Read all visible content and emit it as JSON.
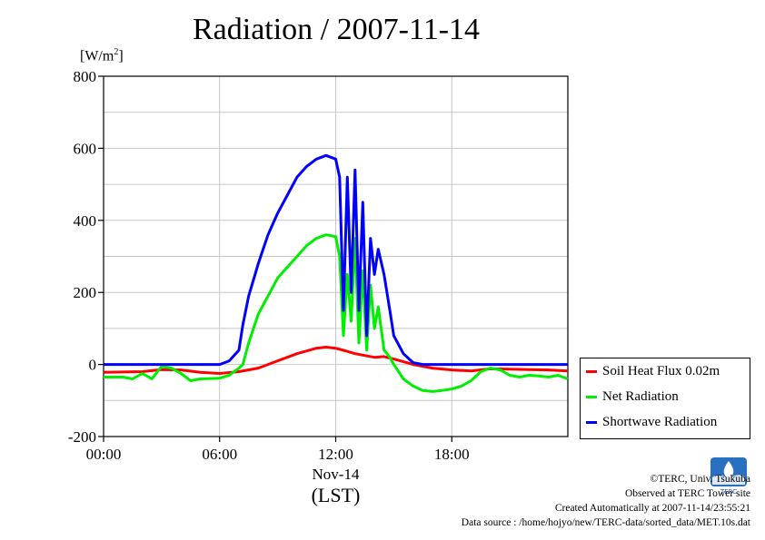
{
  "chart_data": {
    "type": "line",
    "title": "Radiation / 2007-11-14",
    "ylabel_unit": "[W/m",
    "ylabel_sup": "2",
    "ylabel_close": "]",
    "ylim": [
      -200,
      800
    ],
    "yticks": [
      800,
      600,
      400,
      200,
      0,
      -200
    ],
    "ytick_labels": [
      "800",
      "600",
      "400",
      "200",
      "0",
      "-200"
    ],
    "xlim": [
      0,
      24
    ],
    "xticks": [
      0,
      6,
      12,
      18
    ],
    "xtick_labels": [
      "00:00",
      "06:00",
      "12:00",
      "18:00"
    ],
    "x_date_label": "Nov-14",
    "xlabel": "(LST)",
    "grid": true,
    "legend_position": "right-bottom",
    "series": [
      {
        "name": "Soil Heat Flux 0.02m",
        "color": "#ff0000",
        "points": [
          [
            0,
            -22
          ],
          [
            2,
            -20
          ],
          [
            3,
            -14
          ],
          [
            4,
            -15
          ],
          [
            5,
            -22
          ],
          [
            6,
            -25
          ],
          [
            7,
            -20
          ],
          [
            8,
            -10
          ],
          [
            9,
            10
          ],
          [
            10,
            30
          ],
          [
            11,
            45
          ],
          [
            11.5,
            48
          ],
          [
            12,
            45
          ],
          [
            12.5,
            38
          ],
          [
            13,
            30
          ],
          [
            13.5,
            25
          ],
          [
            14,
            20
          ],
          [
            14.5,
            22
          ],
          [
            15,
            15
          ],
          [
            16,
            0
          ],
          [
            17,
            -10
          ],
          [
            18,
            -15
          ],
          [
            19,
            -18
          ],
          [
            20,
            -12
          ],
          [
            21,
            -13
          ],
          [
            22,
            -14
          ],
          [
            23,
            -15
          ],
          [
            24,
            -18
          ]
        ]
      },
      {
        "name": "Net Radiation",
        "color": "#00ee00",
        "points": [
          [
            0,
            -35
          ],
          [
            1,
            -35
          ],
          [
            1.5,
            -40
          ],
          [
            2,
            -25
          ],
          [
            2.5,
            -40
          ],
          [
            3,
            -5
          ],
          [
            3.5,
            -10
          ],
          [
            4,
            -25
          ],
          [
            4.5,
            -45
          ],
          [
            5,
            -40
          ],
          [
            6,
            -38
          ],
          [
            6.5,
            -30
          ],
          [
            7,
            -10
          ],
          [
            7.2,
            0
          ],
          [
            7.5,
            60
          ],
          [
            8,
            140
          ],
          [
            8.5,
            190
          ],
          [
            9,
            240
          ],
          [
            9.5,
            270
          ],
          [
            10,
            300
          ],
          [
            10.5,
            330
          ],
          [
            11,
            350
          ],
          [
            11.5,
            360
          ],
          [
            12,
            355
          ],
          [
            12.2,
            300
          ],
          [
            12.4,
            80
          ],
          [
            12.6,
            250
          ],
          [
            12.8,
            120
          ],
          [
            13,
            350
          ],
          [
            13.2,
            60
          ],
          [
            13.4,
            260
          ],
          [
            13.6,
            40
          ],
          [
            13.8,
            220
          ],
          [
            14,
            100
          ],
          [
            14.2,
            160
          ],
          [
            14.5,
            40
          ],
          [
            14.8,
            20
          ],
          [
            15,
            0
          ],
          [
            15.5,
            -40
          ],
          [
            16,
            -60
          ],
          [
            16.5,
            -72
          ],
          [
            17,
            -75
          ],
          [
            17.5,
            -72
          ],
          [
            18,
            -68
          ],
          [
            18.5,
            -60
          ],
          [
            19,
            -45
          ],
          [
            19.5,
            -20
          ],
          [
            20,
            -10
          ],
          [
            20.5,
            -15
          ],
          [
            21,
            -30
          ],
          [
            21.5,
            -35
          ],
          [
            22,
            -30
          ],
          [
            22.5,
            -32
          ],
          [
            23,
            -35
          ],
          [
            23.5,
            -30
          ],
          [
            24,
            -40
          ]
        ]
      },
      {
        "name": "Shortwave Radiation",
        "color": "#0000ff",
        "points": [
          [
            0,
            0
          ],
          [
            6,
            0
          ],
          [
            6.5,
            10
          ],
          [
            7,
            40
          ],
          [
            7.2,
            110
          ],
          [
            7.5,
            190
          ],
          [
            8,
            280
          ],
          [
            8.5,
            360
          ],
          [
            9,
            420
          ],
          [
            9.5,
            470
          ],
          [
            10,
            520
          ],
          [
            10.5,
            550
          ],
          [
            11,
            570
          ],
          [
            11.5,
            580
          ],
          [
            12,
            570
          ],
          [
            12.2,
            520
          ],
          [
            12.4,
            150
          ],
          [
            12.6,
            520
          ],
          [
            12.8,
            200
          ],
          [
            13,
            540
          ],
          [
            13.2,
            150
          ],
          [
            13.4,
            450
          ],
          [
            13.6,
            80
          ],
          [
            13.8,
            350
          ],
          [
            14,
            250
          ],
          [
            14.2,
            320
          ],
          [
            14.5,
            250
          ],
          [
            14.8,
            150
          ],
          [
            15,
            80
          ],
          [
            15.5,
            30
          ],
          [
            16,
            5
          ],
          [
            16.5,
            0
          ],
          [
            24,
            0
          ]
        ]
      }
    ]
  },
  "credits": {
    "line1": "©TERC, Univ. Tsukuba",
    "line2": "Observed at TERC Tower site",
    "line3": "Created Automatically at 2007-11-14/23:55:21",
    "line4": "Data source : /home/hojyo/new/TERC-data/sorted_data/MET.10s.dat"
  },
  "logo": {
    "text": "TERC"
  }
}
